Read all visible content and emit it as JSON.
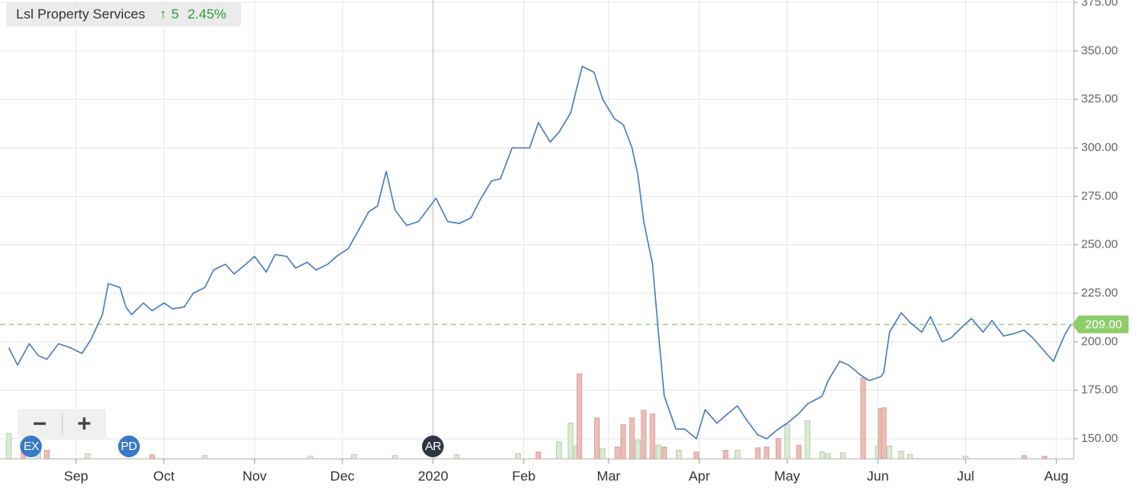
{
  "legend": {
    "name": "Lsl Property Services",
    "arrow": "↑",
    "change": "5",
    "change_pct": "2.45%"
  },
  "zoom": {
    "out_label": "−",
    "in_label": "+"
  },
  "events": [
    {
      "label": "EX",
      "date": "2019-08-12",
      "color": "blue"
    },
    {
      "label": "PD",
      "date": "2019-09-19",
      "color": "blue"
    },
    {
      "label": "AR",
      "date": "2020-01-01",
      "color": "dark"
    }
  ],
  "colors": {
    "line": "#4a7dbe",
    "up_volume": "#dcebd4",
    "down_volume": "#ecbdb6",
    "last_price": "#8fcc6a",
    "grid": "#e6e6e6"
  },
  "chart_data": {
    "type": "line",
    "title": "Lsl Property Services",
    "xlabel": "",
    "ylabel": "",
    "ylim": [
      140,
      375
    ],
    "y_ticks": [
      "150.00",
      "175.00",
      "200.00",
      "225.00",
      "250.00",
      "275.00",
      "300.00",
      "325.00",
      "350.00",
      "375.00"
    ],
    "x_ticks": [
      {
        "label": "Sep",
        "date": "2019-09-01"
      },
      {
        "label": "Oct",
        "date": "2019-10-01"
      },
      {
        "label": "Nov",
        "date": "2019-11-01"
      },
      {
        "label": "Dec",
        "date": "2019-12-01"
      },
      {
        "label": "2020",
        "date": "2020-01-01"
      },
      {
        "label": "Feb",
        "date": "2020-02-01"
      },
      {
        "label": "Mar",
        "date": "2020-03-01"
      },
      {
        "label": "Apr",
        "date": "2020-04-01"
      },
      {
        "label": "May",
        "date": "2020-05-01"
      },
      {
        "label": "Jun",
        "date": "2020-06-01"
      },
      {
        "label": "Jul",
        "date": "2020-07-01"
      },
      {
        "label": "Aug",
        "date": "2020-08-01"
      }
    ],
    "grid": true,
    "last_price": {
      "value": 209,
      "label": "209.00"
    },
    "series": [
      {
        "name": "Lsl Property Services",
        "x": [
          "2019-08-09",
          "2019-08-12",
          "2019-08-16",
          "2019-08-19",
          "2019-08-22",
          "2019-08-26",
          "2019-08-30",
          "2019-09-03",
          "2019-09-06",
          "2019-09-10",
          "2019-09-12",
          "2019-09-16",
          "2019-09-18",
          "2019-09-20",
          "2019-09-24",
          "2019-09-27",
          "2019-10-01",
          "2019-10-04",
          "2019-10-08",
          "2019-10-11",
          "2019-10-15",
          "2019-10-18",
          "2019-10-22",
          "2019-10-25",
          "2019-10-29",
          "2019-11-01",
          "2019-11-05",
          "2019-11-08",
          "2019-11-12",
          "2019-11-15",
          "2019-11-19",
          "2019-11-22",
          "2019-11-26",
          "2019-11-29",
          "2019-12-03",
          "2019-12-06",
          "2019-12-10",
          "2019-12-13",
          "2019-12-16",
          "2019-12-19",
          "2019-12-23",
          "2019-12-27",
          "2020-01-02",
          "2020-01-06",
          "2020-01-10",
          "2020-01-14",
          "2020-01-17",
          "2020-01-21",
          "2020-01-24",
          "2020-01-28",
          "2020-02-03",
          "2020-02-06",
          "2020-02-10",
          "2020-02-13",
          "2020-02-17",
          "2020-02-19",
          "2020-02-21",
          "2020-02-25",
          "2020-02-28",
          "2020-03-03",
          "2020-03-06",
          "2020-03-09",
          "2020-03-11",
          "2020-03-13",
          "2020-03-16",
          "2020-03-18",
          "2020-03-20",
          "2020-03-24",
          "2020-03-27",
          "2020-03-31",
          "2020-04-03",
          "2020-04-07",
          "2020-04-10",
          "2020-04-14",
          "2020-04-17",
          "2020-04-21",
          "2020-04-24",
          "2020-04-28",
          "2020-05-01",
          "2020-05-05",
          "2020-05-08",
          "2020-05-13",
          "2020-05-15",
          "2020-05-19",
          "2020-05-22",
          "2020-05-26",
          "2020-05-29",
          "2020-06-02",
          "2020-06-03",
          "2020-06-05",
          "2020-06-09",
          "2020-06-12",
          "2020-06-16",
          "2020-06-19",
          "2020-06-23",
          "2020-06-26",
          "2020-06-30",
          "2020-07-03",
          "2020-07-07",
          "2020-07-10",
          "2020-07-14",
          "2020-07-17",
          "2020-07-21",
          "2020-07-24",
          "2020-07-28",
          "2020-07-31",
          "2020-08-04",
          "2020-08-06"
        ],
        "values": [
          197,
          188,
          199,
          193,
          191,
          199,
          197,
          194,
          201,
          214,
          230,
          228,
          218,
          214,
          220,
          216,
          220,
          217,
          218,
          225,
          228,
          237,
          240,
          235,
          240,
          244,
          236,
          245,
          244,
          238,
          241,
          237,
          240,
          244,
          248,
          256,
          267,
          270,
          288,
          268,
          260,
          262,
          274,
          262,
          261,
          264,
          273,
          283,
          284,
          300,
          300,
          313,
          303,
          308,
          318,
          330,
          342,
          339,
          325,
          315,
          312,
          300,
          286,
          262,
          240,
          205,
          172,
          155,
          155,
          150,
          165,
          158,
          162,
          167,
          160,
          152,
          150,
          155,
          158,
          163,
          168,
          172,
          180,
          190,
          188,
          183,
          180,
          182,
          184,
          205,
          215,
          210,
          205,
          213,
          200,
          202,
          208,
          212,
          205,
          211,
          203,
          204,
          206,
          202,
          195,
          190,
          204,
          209
        ]
      }
    ],
    "volume": {
      "x": [
        "2019-08-09",
        "2019-08-14",
        "2019-08-19",
        "2019-08-22",
        "2019-09-05",
        "2019-09-27",
        "2019-10-15",
        "2019-11-20",
        "2019-12-05",
        "2019-12-19",
        "2020-01-09",
        "2020-01-30",
        "2020-02-06",
        "2020-02-13",
        "2020-02-17",
        "2020-02-19",
        "2020-02-20",
        "2020-02-26",
        "2020-02-28",
        "2020-03-04",
        "2020-03-06",
        "2020-03-09",
        "2020-03-11",
        "2020-03-13",
        "2020-03-16",
        "2020-03-18",
        "2020-03-20",
        "2020-03-25",
        "2020-03-31",
        "2020-04-10",
        "2020-04-14",
        "2020-04-21",
        "2020-04-24",
        "2020-04-28",
        "2020-05-01",
        "2020-05-05",
        "2020-05-08",
        "2020-05-13",
        "2020-05-15",
        "2020-05-20",
        "2020-05-27",
        "2020-06-01",
        "2020-06-02",
        "2020-06-03",
        "2020-06-05",
        "2020-06-09",
        "2020-06-12",
        "2020-07-01",
        "2020-07-21",
        "2020-07-28"
      ],
      "values": [
        0.3,
        0.2,
        0.2,
        0.1,
        0.06,
        0.05,
        0.04,
        0.03,
        0.05,
        0.04,
        0.05,
        0.06,
        0.08,
        0.2,
        0.42,
        0.15,
        1.0,
        0.48,
        0.12,
        0.14,
        0.4,
        0.48,
        0.22,
        0.57,
        0.53,
        0.16,
        0.14,
        0.1,
        0.08,
        0.1,
        0.1,
        0.13,
        0.14,
        0.24,
        0.4,
        0.16,
        0.45,
        0.08,
        0.06,
        0.07,
        0.95,
        0.15,
        0.59,
        0.6,
        0.15,
        0.09,
        0.05,
        0.03,
        0.04,
        0.03
      ],
      "direction": [
        "up",
        "down",
        "up",
        "down",
        "up",
        "down",
        "up",
        "up",
        "up",
        "up",
        "up",
        "up",
        "down",
        "up",
        "up",
        "up",
        "down",
        "down",
        "up",
        "down",
        "down",
        "down",
        "up",
        "down",
        "down",
        "up",
        "down",
        "up",
        "down",
        "down",
        "up",
        "down",
        "down",
        "down",
        "up",
        "down",
        "up",
        "up",
        "up",
        "up",
        "down",
        "up",
        "down",
        "down",
        "up",
        "up",
        "up",
        "up",
        "down",
        "down"
      ]
    }
  }
}
